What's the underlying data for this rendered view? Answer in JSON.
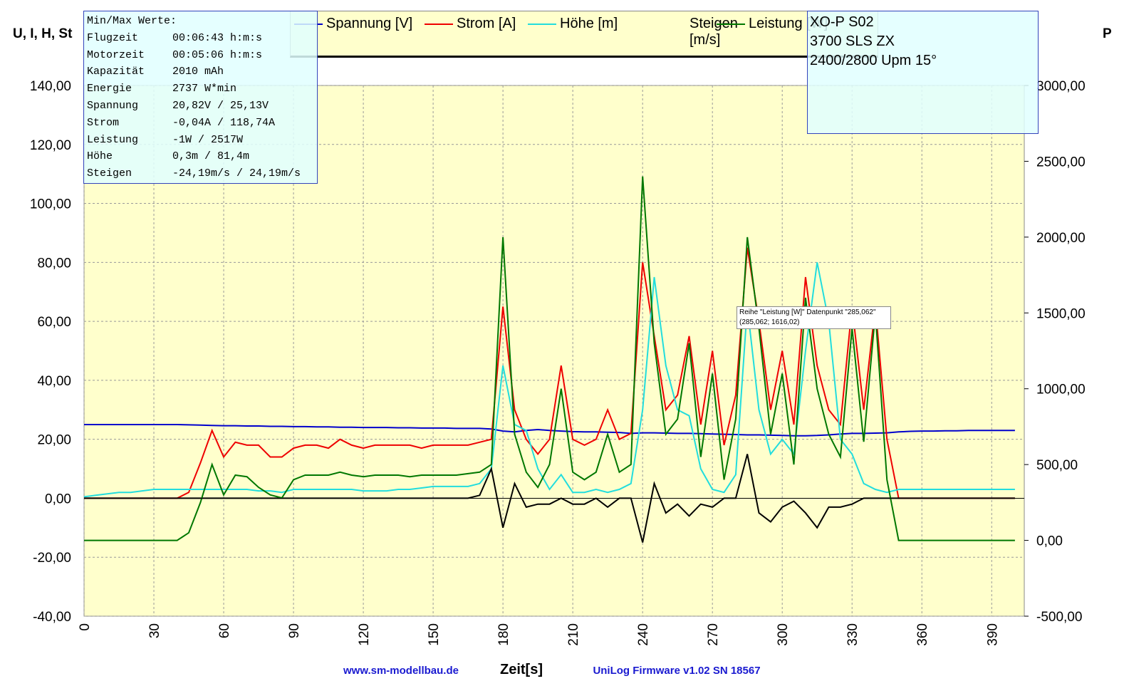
{
  "chart_data": {
    "type": "line",
    "y_label": "U, I, H, St",
    "y2_label": "P",
    "x_label": "Zeit[s]",
    "footer_left": "www.sm-modellbau.de",
    "footer_right": "UniLog Firmware v1.02 SN 18567",
    "info_box": {
      "title": "Min/Max Werte:",
      "rows": [
        [
          "Flugzeit",
          "00:06:43 h:m:s"
        ],
        [
          "Motorzeit",
          "00:05:06 h:m:s"
        ],
        [
          "Kapazität",
          "2010 mAh"
        ],
        [
          "Energie",
          "2737 W*min"
        ],
        [
          "Spannung",
          "20,82V / 25,13V"
        ],
        [
          "Strom",
          "-0,04A / 118,74A"
        ],
        [
          "Leistung",
          "-1W / 2517W"
        ],
        [
          "Höhe",
          "0,3m / 81,4m"
        ],
        [
          "Steigen",
          "-24,19m/s / 24,19m/s"
        ]
      ]
    },
    "model_box": [
      "XO-P S02",
      "3700 SLS ZX",
      "2400/2800 Upm 15°"
    ],
    "tooltip": [
      "Reihe \"Leistung [W]\" Datenpunkt \"285,062\"",
      "(285,062; 1616,02)"
    ],
    "xlim": [
      0,
      404
    ],
    "xticks": [
      0,
      30,
      60,
      90,
      120,
      150,
      180,
      210,
      240,
      270,
      300,
      330,
      360,
      390
    ],
    "ylim": [
      -40,
      140
    ],
    "yticks": [
      {
        "value": -40,
        "label": "-40,00"
      },
      {
        "value": -20,
        "label": "-20,00"
      },
      {
        "value": 0,
        "label": "0,00"
      },
      {
        "value": 20,
        "label": "20,00"
      },
      {
        "value": 40,
        "label": "40,00"
      },
      {
        "value": 60,
        "label": "60,00"
      },
      {
        "value": 80,
        "label": "80,00"
      },
      {
        "value": 100,
        "label": "100,00"
      },
      {
        "value": 120,
        "label": "120,00"
      },
      {
        "value": 140,
        "label": "140,00"
      }
    ],
    "y2lim": [
      -500,
      3000
    ],
    "y2ticks": [
      {
        "value": -500,
        "label": "-500,00"
      },
      {
        "value": 0,
        "label": "0,00"
      },
      {
        "value": 500,
        "label": "500,00"
      },
      {
        "value": 1000,
        "label": "1000,00"
      },
      {
        "value": 1500,
        "label": "1500,00"
      },
      {
        "value": 2000,
        "label": "2000,00"
      },
      {
        "value": 2500,
        "label": "2500,00"
      },
      {
        "value": 3000,
        "label": "3000,00"
      }
    ],
    "grid": true,
    "x": [
      0,
      5,
      10,
      15,
      20,
      25,
      30,
      35,
      40,
      45,
      50,
      55,
      60,
      65,
      70,
      75,
      80,
      85,
      90,
      95,
      100,
      105,
      110,
      115,
      120,
      125,
      130,
      135,
      140,
      145,
      150,
      155,
      160,
      165,
      170,
      175,
      180,
      185,
      190,
      195,
      200,
      205,
      210,
      215,
      220,
      225,
      230,
      235,
      240,
      245,
      250,
      255,
      260,
      265,
      270,
      275,
      280,
      285,
      290,
      295,
      300,
      305,
      310,
      315,
      320,
      325,
      330,
      335,
      340,
      345,
      350,
      355,
      360,
      365,
      370,
      375,
      380,
      385,
      390,
      395,
      400
    ],
    "series": [
      {
        "name": "Spannung [V]",
        "color": "#0000cc",
        "values": [
          25,
          25,
          25,
          25,
          25,
          25,
          25,
          25,
          25,
          24.9,
          24.8,
          24.7,
          24.6,
          24.6,
          24.5,
          24.5,
          24.4,
          24.4,
          24.3,
          24.3,
          24.2,
          24.2,
          24.1,
          24.1,
          24,
          24,
          24,
          23.9,
          23.9,
          23.8,
          23.8,
          23.8,
          23.7,
          23.7,
          23.7,
          23.5,
          22.8,
          22.5,
          23,
          23.3,
          23,
          22.8,
          22.6,
          22.5,
          22.5,
          22.4,
          22.3,
          22,
          22.2,
          22.2,
          22.1,
          22,
          22,
          21.9,
          21.8,
          21.7,
          21.6,
          21.5,
          21.5,
          21.4,
          21.3,
          21.2,
          21.2,
          21.3,
          21.5,
          21.8,
          22,
          22,
          22.1,
          22.2,
          22.5,
          22.7,
          22.8,
          22.8,
          22.9,
          22.9,
          23,
          23,
          23,
          23,
          23
        ]
      },
      {
        "name": "Strom [A]",
        "color": "#ee0000",
        "values": [
          0,
          0,
          0,
          0,
          0,
          0,
          0,
          0,
          0,
          2,
          12,
          23,
          14,
          19,
          18,
          18,
          14,
          14,
          17,
          18,
          18,
          17,
          20,
          18,
          17,
          18,
          18,
          18,
          18,
          17,
          18,
          18,
          18,
          18,
          19,
          20,
          65,
          30,
          20,
          15,
          20,
          45,
          20,
          18,
          20,
          30,
          20,
          22,
          80,
          55,
          30,
          35,
          55,
          25,
          50,
          18,
          35,
          85,
          60,
          30,
          50,
          25,
          75,
          45,
          30,
          25,
          65,
          30,
          65,
          20,
          0,
          0,
          0,
          0,
          0,
          0,
          0,
          0,
          0,
          0,
          0
        ]
      },
      {
        "name": "Höhe [m]",
        "color": "#22dddd",
        "values": [
          0.5,
          1,
          1.5,
          2,
          2,
          2.5,
          3,
          3,
          3,
          3,
          3,
          3,
          3,
          3,
          3,
          2.5,
          2.5,
          2,
          3,
          3,
          3,
          3,
          3,
          3,
          2.5,
          2.5,
          2.5,
          3,
          3,
          3.5,
          4,
          4,
          4,
          4,
          5,
          10,
          45,
          25,
          23,
          10,
          3,
          8,
          2,
          2,
          3,
          2,
          3,
          5,
          30,
          75,
          45,
          30,
          28,
          10,
          3,
          2,
          8,
          65,
          30,
          15,
          20,
          15,
          50,
          80,
          60,
          20,
          15,
          5,
          3,
          2,
          3,
          3,
          3,
          3,
          3,
          3,
          3,
          3,
          3,
          3,
          3
        ]
      },
      {
        "name": "Steigen [m/s]",
        "color": "#000000",
        "values": [
          0,
          0,
          0,
          0,
          0,
          0,
          0,
          0,
          0,
          0,
          0,
          0,
          0,
          0,
          0,
          0,
          0,
          0,
          0,
          0,
          0,
          0,
          0,
          0,
          0,
          0,
          0,
          0,
          0,
          0,
          0,
          0,
          0,
          0,
          1,
          10,
          -10,
          5,
          -3,
          -2,
          -2,
          0,
          -2,
          -2,
          0,
          -3,
          0,
          0,
          -15,
          5,
          -5,
          -2,
          -6,
          -2,
          -3,
          0,
          0,
          15,
          -5,
          -8,
          -3,
          -1,
          -5,
          -10,
          -3,
          -3,
          -2,
          0,
          0,
          0,
          0,
          0,
          0,
          0,
          0,
          0,
          0,
          0,
          0,
          0,
          0
        ]
      },
      {
        "name": "Leistung [W]",
        "color": "#007700",
        "axis": "y2",
        "values": [
          0,
          0,
          0,
          0,
          0,
          0,
          0,
          0,
          0,
          50,
          250,
          500,
          300,
          430,
          420,
          350,
          300,
          280,
          400,
          430,
          430,
          430,
          450,
          430,
          420,
          430,
          430,
          430,
          420,
          430,
          430,
          430,
          430,
          440,
          450,
          500,
          2000,
          700,
          450,
          350,
          500,
          1000,
          450,
          400,
          450,
          700,
          450,
          500,
          2400,
          1300,
          700,
          800,
          1300,
          550,
          1100,
          400,
          800,
          2000,
          1400,
          700,
          1100,
          500,
          1600,
          1000,
          700,
          550,
          1400,
          650,
          1500,
          400,
          0,
          0,
          0,
          0,
          0,
          0,
          0,
          0,
          0,
          0,
          0
        ]
      }
    ]
  }
}
